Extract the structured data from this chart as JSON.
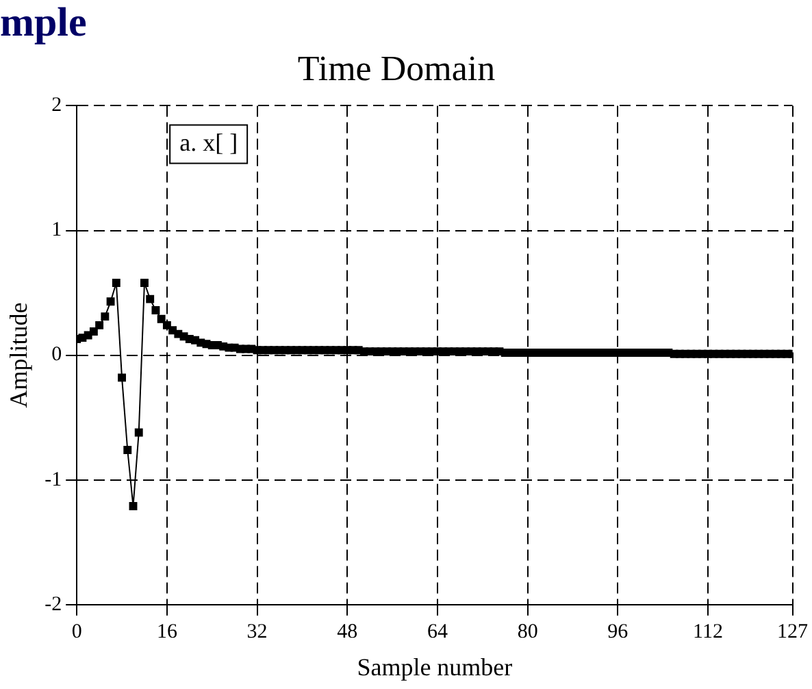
{
  "chart_data": {
    "type": "line",
    "title": "mple",
    "subtitle": "Time Domain",
    "xlabel": "Sample number",
    "ylabel": "Amplitude",
    "annotations": [
      "a. x[ ]"
    ],
    "x": [
      0,
      1,
      2,
      3,
      4,
      5,
      6,
      7,
      8,
      9,
      10,
      11,
      12,
      13,
      14,
      15,
      16,
      17,
      18,
      19,
      20,
      21,
      22,
      23,
      24,
      25,
      26,
      27,
      28,
      29,
      30,
      31,
      32,
      33,
      34,
      35,
      36,
      37,
      38,
      39,
      40,
      41,
      42,
      43,
      44,
      45,
      46,
      47,
      48,
      49,
      50,
      51,
      52,
      53,
      54,
      55,
      56,
      57,
      58,
      59,
      60,
      61,
      62,
      63,
      64,
      65,
      66,
      67,
      68,
      69,
      70,
      71,
      72,
      73,
      74,
      75,
      76,
      77,
      78,
      79,
      80,
      81,
      82,
      83,
      84,
      85,
      86,
      87,
      88,
      89,
      90,
      91,
      92,
      93,
      94,
      95,
      96,
      97,
      98,
      99,
      100,
      101,
      102,
      103,
      104,
      105,
      106,
      107,
      108,
      109,
      110,
      111,
      112,
      113,
      114,
      115,
      116,
      117,
      118,
      119,
      120,
      121,
      122,
      123,
      124,
      125,
      126,
      127
    ],
    "series": [
      {
        "color": "#000000",
        "values": [
          0.13,
          0.14,
          0.16,
          0.19,
          0.24,
          0.31,
          0.43,
          0.58,
          -0.18,
          -0.76,
          -1.21,
          -0.62,
          0.58,
          0.45,
          0.36,
          0.29,
          0.24,
          0.2,
          0.17,
          0.15,
          0.13,
          0.12,
          0.1,
          0.09,
          0.08,
          0.08,
          0.07,
          0.06,
          0.06,
          0.05,
          0.05,
          0.05,
          0.04,
          0.04,
          0.04,
          0.04,
          0.04,
          0.04,
          0.04,
          0.04,
          0.04,
          0.04,
          0.04,
          0.04,
          0.04,
          0.04,
          0.04,
          0.04,
          0.04,
          0.04,
          0.04,
          0.03,
          0.03,
          0.03,
          0.03,
          0.03,
          0.03,
          0.03,
          0.03,
          0.03,
          0.03,
          0.03,
          0.03,
          0.03,
          0.03,
          0.03,
          0.03,
          0.03,
          0.03,
          0.03,
          0.03,
          0.03,
          0.03,
          0.03,
          0.03,
          0.03,
          0.02,
          0.02,
          0.02,
          0.02,
          0.02,
          0.02,
          0.02,
          0.02,
          0.02,
          0.02,
          0.02,
          0.02,
          0.02,
          0.02,
          0.02,
          0.02,
          0.02,
          0.02,
          0.02,
          0.02,
          0.02,
          0.02,
          0.02,
          0.02,
          0.02,
          0.02,
          0.02,
          0.02,
          0.02,
          0.02,
          0.01,
          0.01,
          0.01,
          0.01,
          0.01,
          0.01,
          0.01,
          0.01,
          0.01,
          0.01,
          0.01,
          0.01,
          0.01,
          0.01,
          0.01,
          0.01,
          0.01,
          0.01,
          0.01,
          0.01,
          0.01,
          0.01
        ]
      }
    ],
    "xlim": [
      0,
      127
    ],
    "xticks": [
      0,
      16,
      32,
      48,
      64,
      80,
      96,
      112,
      127
    ],
    "ylim": [
      -2,
      2
    ],
    "yticks": [
      -2,
      -1,
      0,
      1,
      2
    ],
    "grid": true,
    "marker": "square",
    "line_style": "solid",
    "legend": false
  }
}
